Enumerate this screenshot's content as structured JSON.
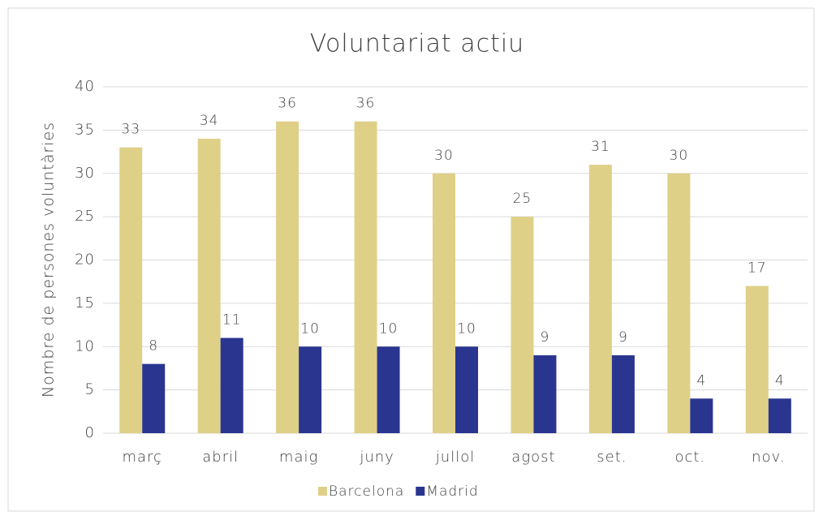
{
  "chart_data": {
    "type": "bar",
    "title": "Voluntariat actiu",
    "y_label": "Nombre de persones voluntàries",
    "categories": [
      "març",
      "abril",
      "maig",
      "juny",
      "jullol",
      "agost",
      "set.",
      "oct.",
      "nov."
    ],
    "series": [
      {
        "name": "Barcelona",
        "color": "#dfd088",
        "values": [
          33,
          34,
          36,
          36,
          30,
          25,
          31,
          30,
          17
        ]
      },
      {
        "name": "Madrid",
        "color": "#2a3590",
        "values": [
          8,
          11,
          10,
          10,
          10,
          9,
          9,
          4,
          4
        ]
      }
    ],
    "ylim": [
      0,
      40
    ],
    "yticks": [
      0,
      5,
      10,
      15,
      20,
      25,
      30,
      35,
      40
    ],
    "grid": true,
    "legend": "bottom"
  }
}
